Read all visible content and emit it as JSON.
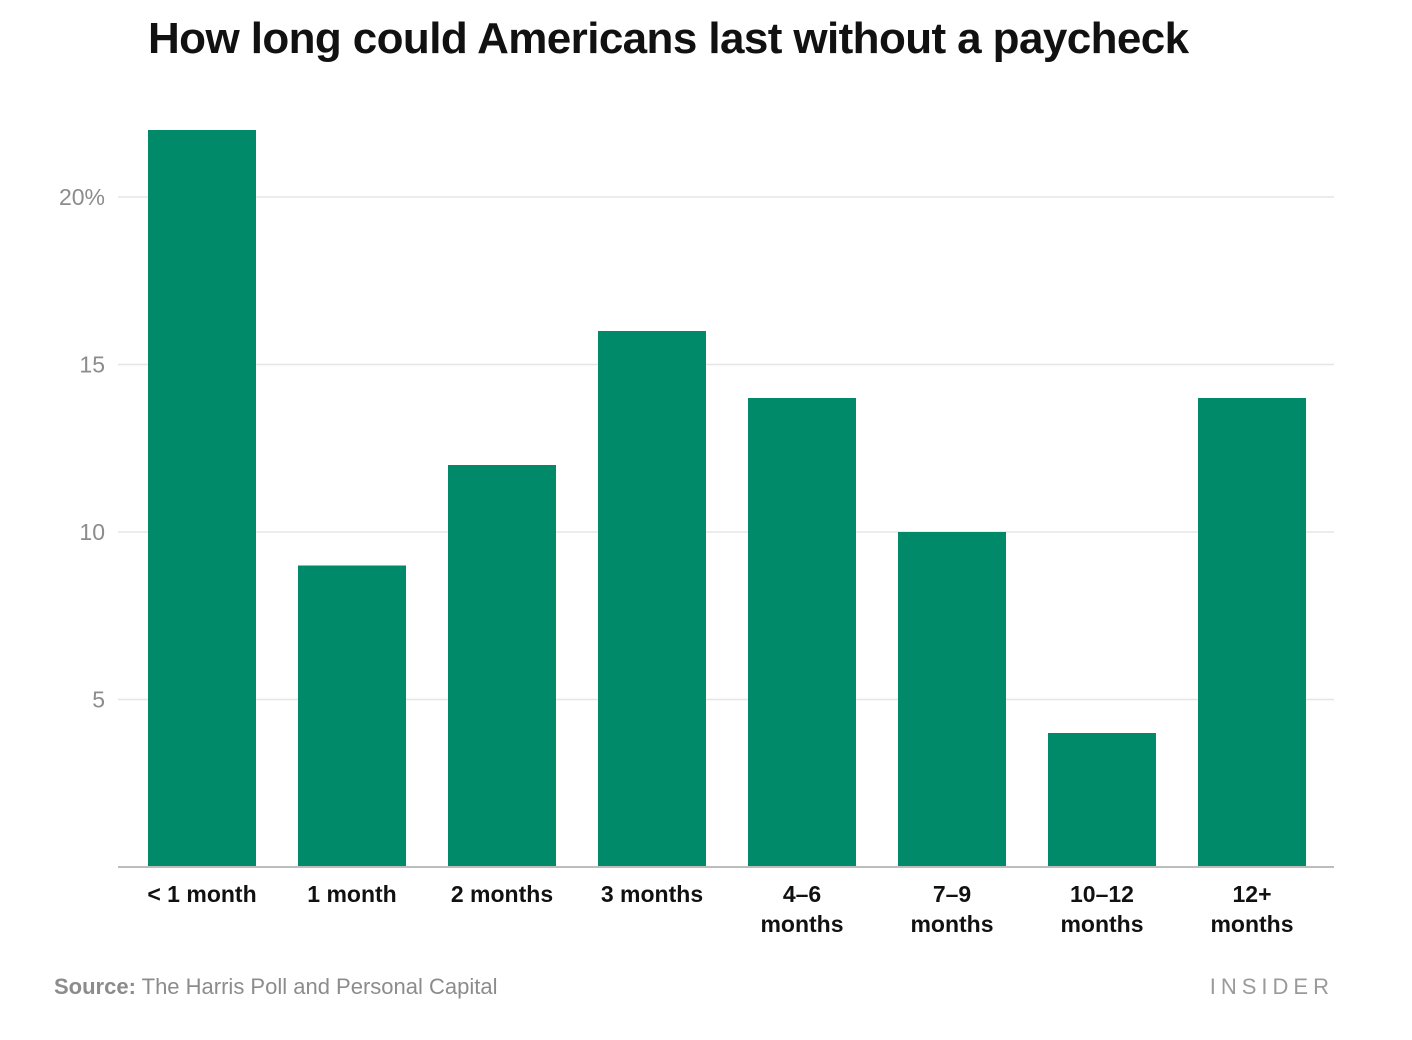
{
  "chart_data": {
    "type": "bar",
    "title": "How long could Americans last without a paycheck",
    "categories": [
      "< 1 month",
      "1 month",
      "2 months",
      "3 months",
      "4–6 months",
      "7–9 months",
      "10–12 months",
      "12+ months"
    ],
    "category_label_lines": [
      [
        "< 1 month"
      ],
      [
        "1 month"
      ],
      [
        "2 months"
      ],
      [
        "3 months"
      ],
      [
        "4–6",
        "months"
      ],
      [
        "7–9",
        "months"
      ],
      [
        "10–12",
        "months"
      ],
      [
        "12+",
        "months"
      ]
    ],
    "values": [
      22,
      9,
      12,
      16,
      14,
      10,
      4,
      14
    ],
    "ylim": [
      0,
      22
    ],
    "y_ticks": [
      5,
      10,
      15,
      20
    ],
    "y_tick_labels": [
      "5",
      "10",
      "15",
      "20%"
    ],
    "xlabel": "",
    "ylabel": "",
    "grid": true,
    "legend": "none",
    "bar_color": "#008a6a",
    "grid_color": "#e6e6e6",
    "axis_color": "#bdbdbd"
  },
  "footer": {
    "source_prefix": "Source:",
    "source_text": " The Harris Poll and Personal Capital",
    "brand": "INSIDER"
  }
}
